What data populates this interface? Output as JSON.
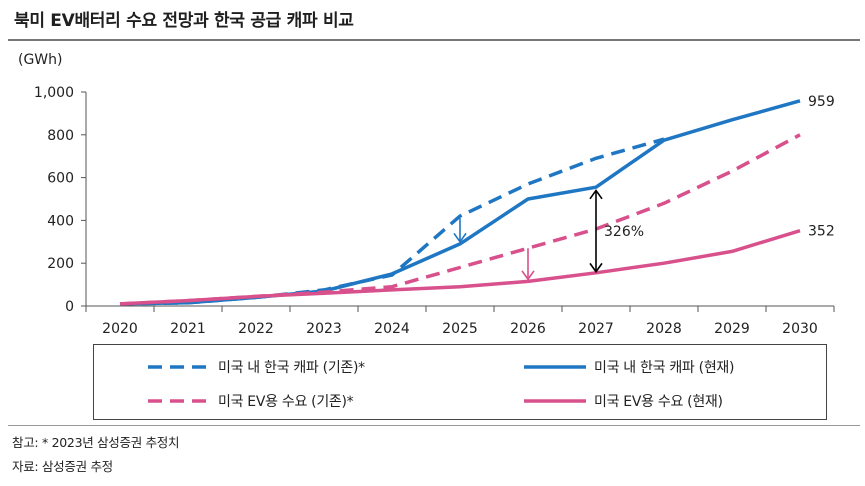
{
  "title": "북미 EV배터리 수요 전망과 한국 공급 캐파 비교",
  "footnotes": {
    "note": "참고: * 2023년 삼성증권 추정치",
    "source": "자료: 삼성증권 추정"
  },
  "chart_data": {
    "type": "line",
    "unit_label": "(GWh)",
    "x": [
      "2020",
      "2021",
      "2022",
      "2023",
      "2024",
      "2025",
      "2026",
      "2027",
      "2028",
      "2029",
      "2030"
    ],
    "ylim": [
      0,
      1000
    ],
    "yticks": [
      0,
      200,
      400,
      600,
      800,
      1000
    ],
    "ytick_labels": [
      "0",
      "200",
      "400",
      "600",
      "800",
      "1,000"
    ],
    "series": [
      {
        "name": "미국 내 한국 캐파 (기존)*",
        "style": "dashed",
        "color": "#1f77c3",
        "values": [
          10,
          15,
          40,
          75,
          145,
          420,
          570,
          690,
          780,
          null,
          null
        ]
      },
      {
        "name": "미국 내 한국 캐파 (현재)",
        "style": "solid",
        "color": "#1f77c3",
        "values": [
          10,
          15,
          40,
          70,
          150,
          290,
          500,
          555,
          775,
          870,
          959
        ]
      },
      {
        "name": "미국 EV용 수요 (기존)*",
        "style": "dashed",
        "color": "#d8508c",
        "values": [
          10,
          25,
          45,
          65,
          90,
          180,
          270,
          360,
          480,
          630,
          800
        ]
      },
      {
        "name": "미국 EV용 수요 (현재)",
        "style": "solid",
        "color": "#d8508c",
        "values": [
          10,
          25,
          45,
          60,
          75,
          90,
          115,
          155,
          200,
          255,
          352
        ]
      }
    ],
    "data_labels": [
      {
        "text": "959",
        "x": "2030",
        "y": 959
      },
      {
        "text": "352",
        "x": "2030",
        "y": 352
      }
    ],
    "annotations": [
      {
        "type": "arrow-down",
        "color": "#1f77c3",
        "x": "2025",
        "from": 410,
        "to": 300
      },
      {
        "type": "arrow-down",
        "color": "#d8508c",
        "x": "2026",
        "from": 270,
        "to": 125
      },
      {
        "type": "double-arrow",
        "color": "#000000",
        "x": "2027",
        "from": 540,
        "to": 160,
        "text": "326%"
      }
    ]
  }
}
